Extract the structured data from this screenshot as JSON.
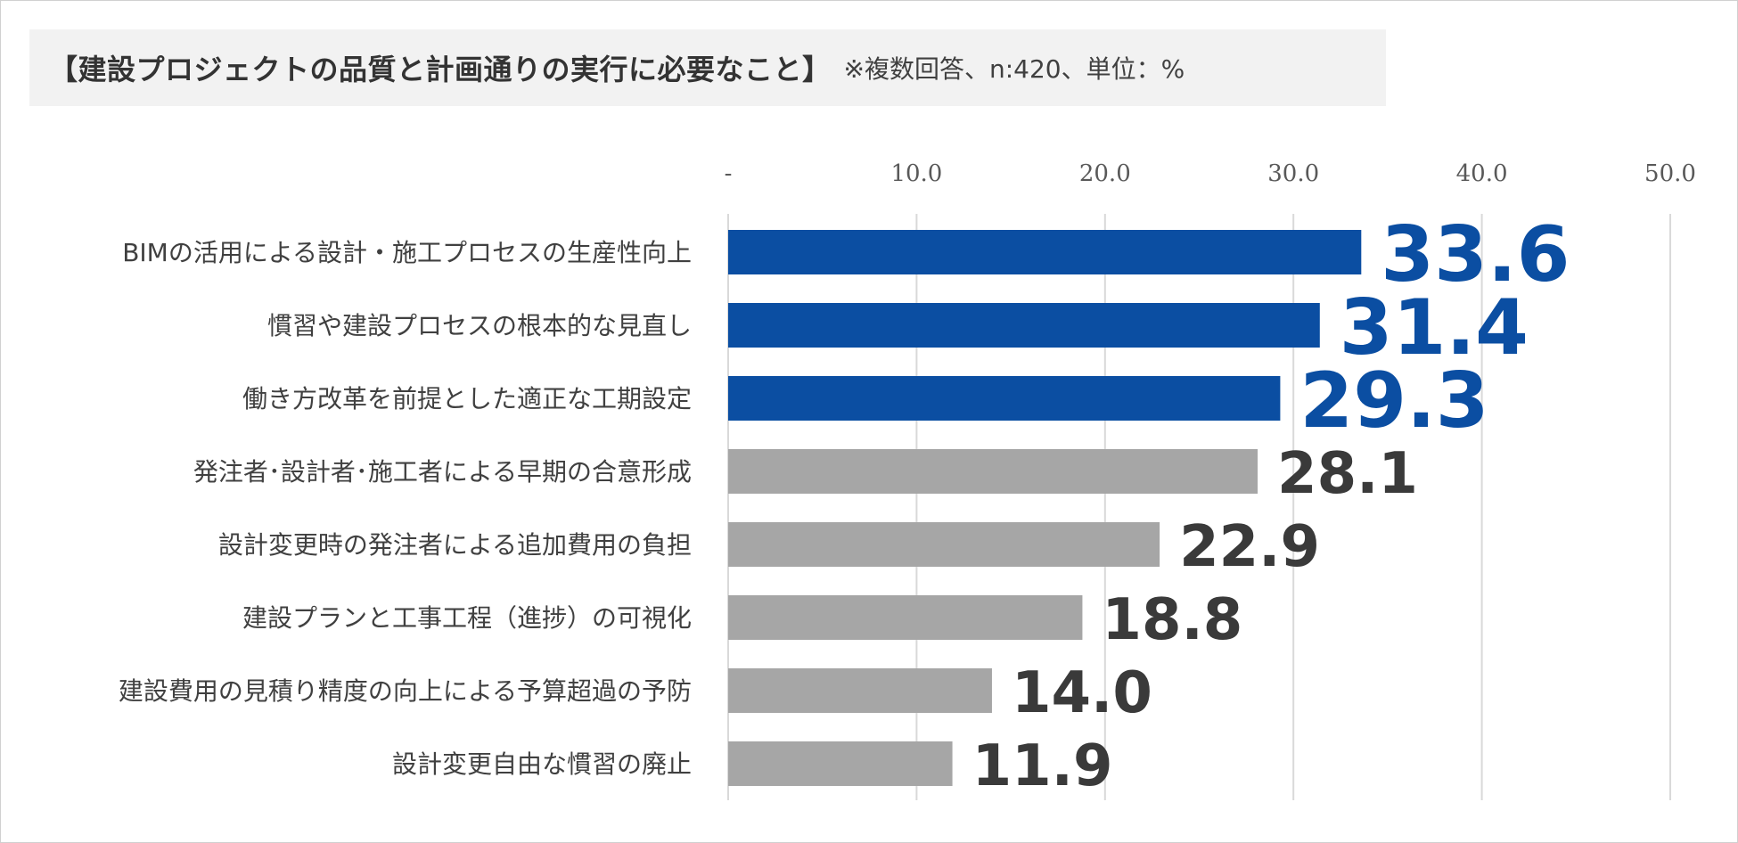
{
  "title": {
    "main": "【建設プロジェクトの品質と計画通りの実行に必要なこと】",
    "note": "※複数回答、n:420、単位：%"
  },
  "colors": {
    "highlight": "#0b4ea2",
    "normal": "#a6a6a6",
    "highlight_label": "#0b4ea2",
    "normal_label": "#3a3a3a",
    "grid": "#d9d9d9"
  },
  "chart_data": {
    "type": "bar",
    "orientation": "horizontal",
    "title": "【建設プロジェクトの品質と計画通りの実行に必要なこと】",
    "subtitle": "※複数回答、n:420、単位：%",
    "xlim": [
      0,
      50
    ],
    "tick_values": [
      0,
      10,
      20,
      30,
      40,
      50
    ],
    "tick_labels": [
      "-",
      "10.0",
      "20.0",
      "30.0",
      "40.0",
      "50.0"
    ],
    "axis_position": "top",
    "grid": true,
    "categories": [
      "BIMの活用による設計・施工プロセスの生産性向上",
      "慣習や建設プロセスの根本的な見直し",
      "働き方改革を前提とした適正な工期設定",
      "発注者･設計者･施工者による早期の合意形成",
      "設計変更時の発注者による追加費用の負担",
      "建設プランと工事工程（進捗）の可視化",
      "建設費用の見積り精度の向上による予算超過の予防",
      "設計変更自由な慣習の廃止"
    ],
    "values": [
      33.6,
      31.4,
      29.3,
      28.1,
      22.9,
      18.8,
      14.0,
      11.9
    ],
    "value_labels": [
      "33.6",
      "31.4",
      "29.3",
      "28.1",
      "22.9",
      "18.8",
      "14.0",
      "11.9"
    ],
    "highlighted": [
      true,
      true,
      true,
      false,
      false,
      false,
      false,
      false
    ]
  }
}
